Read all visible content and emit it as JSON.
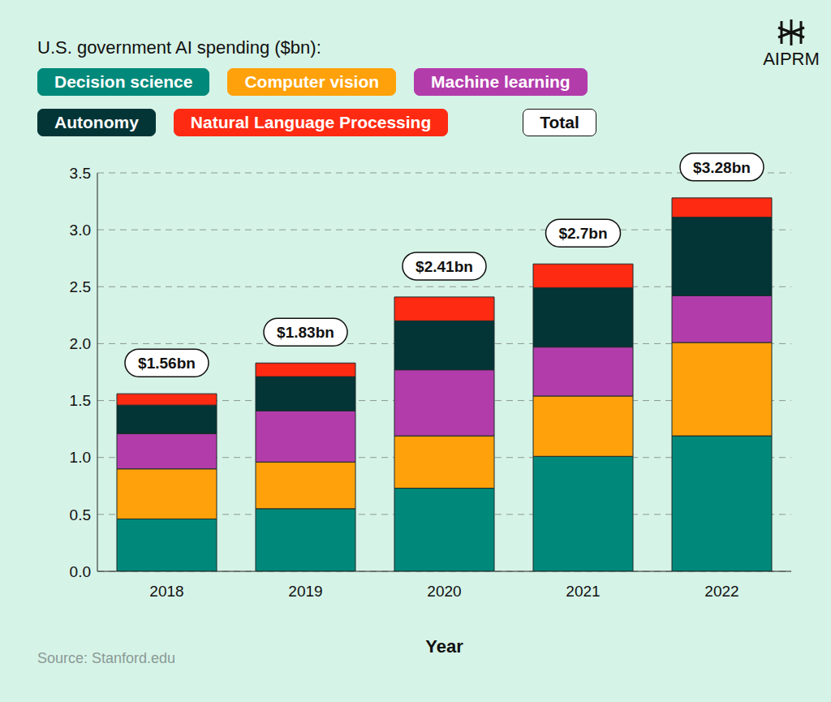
{
  "chart_data": {
    "type": "bar",
    "stacked": true,
    "title": "U.S. government AI spending ($bn):",
    "x_label": "Year",
    "source": "Source: Stanford.edu",
    "categories": [
      "2018",
      "2019",
      "2020",
      "2021",
      "2022"
    ],
    "series": [
      {
        "name": "Decision science",
        "color": "#00897a",
        "values": [
          0.46,
          0.55,
          0.73,
          1.01,
          1.19
        ]
      },
      {
        "name": "Computer vision",
        "color": "#ffa10a",
        "values": [
          0.44,
          0.41,
          0.46,
          0.53,
          0.82
        ]
      },
      {
        "name": "Machine learning",
        "color": "#b33cab",
        "values": [
          0.31,
          0.45,
          0.58,
          0.43,
          0.41
        ]
      },
      {
        "name": "Autonomy",
        "color": "#033536",
        "values": [
          0.25,
          0.3,
          0.43,
          0.52,
          0.69
        ]
      },
      {
        "name": "Natural Language Processing",
        "color": "#ff2a12",
        "values": [
          0.1,
          0.12,
          0.21,
          0.21,
          0.17
        ]
      }
    ],
    "totals": {
      "name": "Total",
      "values": [
        1.56,
        1.83,
        2.41,
        2.7,
        3.28
      ],
      "value_labels": [
        "$1.56bn",
        "$1.83bn",
        "$2.41bn",
        "$2.7bn",
        "$3.28bn"
      ]
    },
    "ylim": [
      0,
      3.5
    ],
    "yticks": [
      {
        "value": 0,
        "label": "0.0"
      },
      0.5,
      {
        "value": 1,
        "label": "1.0"
      },
      1.5,
      {
        "value": 2,
        "label": "2.0"
      },
      2.5,
      {
        "value": 3,
        "label": "3.0"
      },
      3.5
    ],
    "grid": true
  },
  "logo": "AIPRM"
}
